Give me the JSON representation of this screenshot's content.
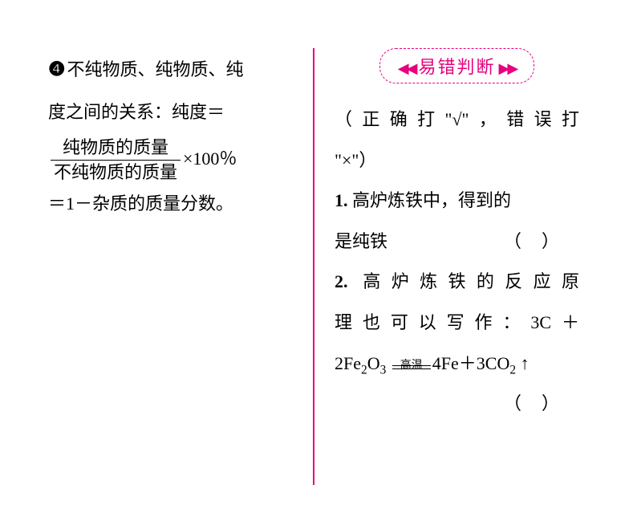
{
  "left": {
    "bullet": "❹",
    "line1": "不纯物质、纯物质、纯",
    "line2": "度之间的关系：纯度＝",
    "frac_num": "纯物质的质量",
    "frac_den": "不纯物质的质量",
    "after_frac": "×100％",
    "line4": "＝1－杂质的质量分数。"
  },
  "right": {
    "header": "易错判断",
    "arrow_l": "◀◀",
    "arrow_r": "▶▶",
    "instruction1": "（正确打\"√\"，错误打",
    "instruction2": "\"×\"）",
    "q1_num": "1.",
    "q1_text1": "高炉炼铁中，得到的",
    "q1_text2": "是纯铁",
    "q2_num": "2.",
    "q2_text1": "高炉炼铁的反应原",
    "q2_text2a": "理也可以写作：",
    "eq_left": "3C＋",
    "eq_left2": "2Fe",
    "eq_sub1": "2",
    "eq_o": "O",
    "eq_sub2": "3",
    "eq_cond": "高温",
    "eq_right": "4Fe＋3CO",
    "eq_sub3": "2",
    "eq_arrow": "↑",
    "paren_open": "（",
    "paren_close": "）"
  }
}
